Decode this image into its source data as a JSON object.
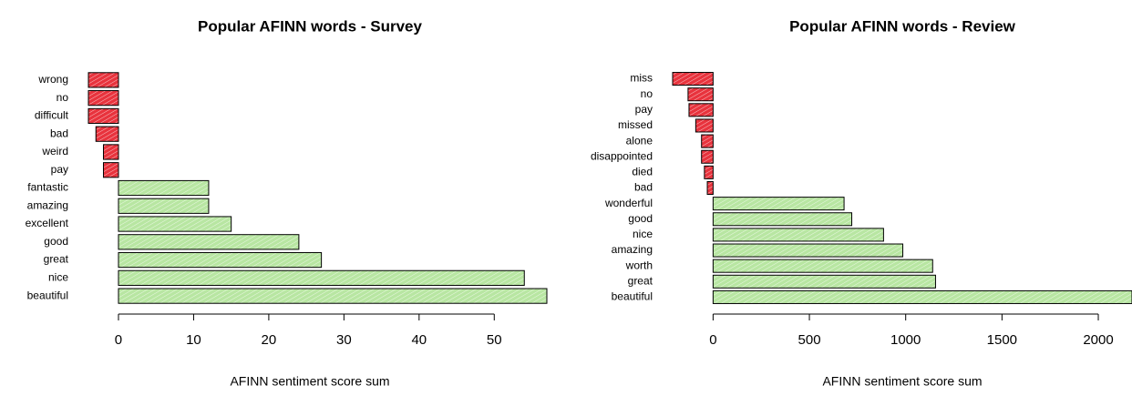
{
  "chart_data": [
    {
      "type": "barh",
      "title": "Popular AFINN words - Survey",
      "x_label": "AFINN sentiment score sum",
      "categories": [
        "wrong",
        "no",
        "difficult",
        "bad",
        "weird",
        "pay",
        "fantastic",
        "amazing",
        "excellent",
        "good",
        "great",
        "nice",
        "beautiful"
      ],
      "values": [
        -4,
        -4,
        -4,
        -3,
        -2,
        -2,
        12,
        12,
        15,
        24,
        27,
        54,
        57
      ],
      "negative_color": "#e8333d",
      "positive_color": "#b8e6a2",
      "xlim": [
        -4,
        57
      ],
      "xticks": [
        0,
        10,
        20,
        30,
        40,
        50
      ]
    },
    {
      "type": "barh",
      "title": "Popular AFINN words - Review",
      "x_label": "AFINN sentiment score sum",
      "categories": [
        "miss",
        "no",
        "pay",
        "missed",
        "alone",
        "disappointed",
        "died",
        "bad",
        "wonderful",
        "good",
        "nice",
        "amazing",
        "worth",
        "great",
        "beautiful"
      ],
      "values": [
        -210,
        -130,
        -125,
        -90,
        -60,
        -60,
        -45,
        -30,
        680,
        720,
        885,
        985,
        1140,
        1155,
        2175
      ],
      "negative_color": "#e8333d",
      "positive_color": "#b8e6a2",
      "xlim": [
        -210,
        2175
      ],
      "xticks": [
        0,
        500,
        1000,
        1500,
        2000
      ]
    }
  ]
}
